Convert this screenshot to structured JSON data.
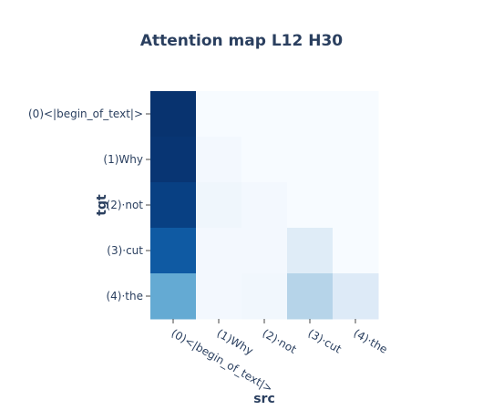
{
  "chart_data": {
    "type": "heatmap",
    "title": "Attention map L12 H30",
    "xlabel": "src",
    "ylabel": "tgt",
    "x_categories": [
      "(0)<|begin_of_text|>",
      "(1)Why",
      "(2)·not",
      "(3)·cut",
      "(4)·the"
    ],
    "y_categories": [
      "(0)<|begin_of_text|>",
      "(1)Why",
      "(2)·not",
      "(3)·cut",
      "(4)·the"
    ],
    "colorscale": "Blues",
    "zmin": 0,
    "zmax": 1,
    "z": [
      [
        0.99,
        0.0,
        0.0,
        0.0,
        0.0
      ],
      [
        0.98,
        0.02,
        0.0,
        0.0,
        0.0
      ],
      [
        0.94,
        0.04,
        0.02,
        0.0,
        0.0
      ],
      [
        0.84,
        0.02,
        0.02,
        0.12,
        0.0
      ],
      [
        0.52,
        0.02,
        0.03,
        0.3,
        0.13
      ]
    ]
  }
}
